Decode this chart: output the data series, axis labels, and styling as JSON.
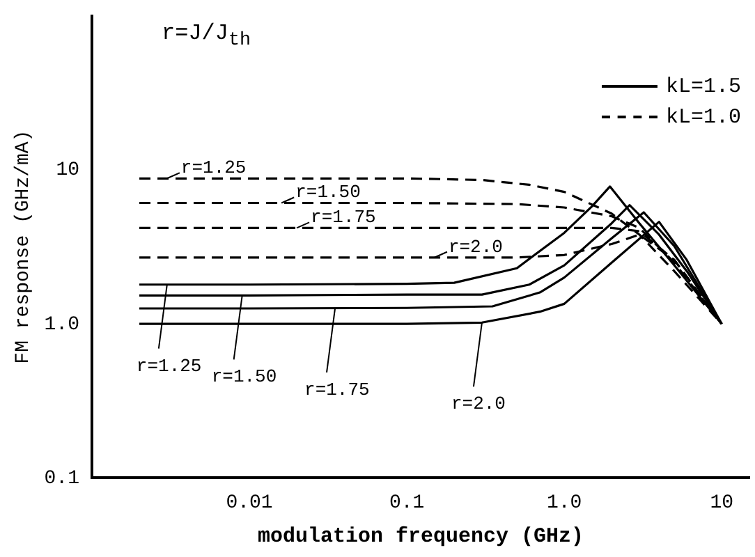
{
  "chart_data": {
    "type": "line",
    "xlabel": "modulation frequency (GHz)",
    "ylabel": "FM response (GHz/mA)",
    "log": "xy",
    "xlim": [
      0.001,
      15
    ],
    "xticks": [
      0.01,
      0.1,
      {
        "value": 1,
        "label": "1.0"
      },
      10
    ],
    "ylim": [
      0.1,
      100
    ],
    "yticks": [
      0.1,
      {
        "value": 1,
        "label": "1.0"
      },
      10
    ],
    "grid": false,
    "legend": "top right",
    "marker": "none",
    "annotations": [
      "r=J/J$_{th}$",
      {
        "text": "r=1.25",
        "x": 0.003,
        "y": 8.8
      },
      {
        "text": "r=1.50",
        "x": 0.016,
        "y": 6.1
      },
      {
        "text": "r=1.75",
        "x": 0.02,
        "y": 4.2
      },
      {
        "text": "r=2.0",
        "x": 0.15,
        "y": 2.7
      },
      {
        "text": "r=1.25",
        "x": 0.003,
        "y": 1.8
      },
      {
        "text": "r=1.50",
        "x": 0.009,
        "y": 1.53
      },
      {
        "text": "r=1.75",
        "x": 0.035,
        "y": 1.26
      },
      {
        "text": "r=2.0",
        "x": 0.3,
        "y": 1.02
      }
    ],
    "series": [
      {
        "name": "kL=1.5",
        "color": "#000000",
        "line_style": "solid",
        "x": [
          0.002,
          0.01,
          0.1,
          0.2,
          0.5,
          1,
          1.5,
          1.95,
          3,
          5,
          10
        ],
        "values": [
          1.8,
          1.8,
          1.82,
          1.85,
          2.3,
          3.9,
          5.8,
          7.8,
          4.5,
          2.4,
          1.0
        ]
      },
      {
        "color": "#000000",
        "line_style": "solid",
        "x": [
          0.002,
          0.01,
          0.1,
          0.3,
          0.6,
          1,
          2,
          2.6,
          4,
          6,
          10
        ],
        "values": [
          1.53,
          1.53,
          1.55,
          1.55,
          1.8,
          2.4,
          4.5,
          5.9,
          3.8,
          2.2,
          1.0
        ]
      },
      {
        "color": "#000000",
        "line_style": "solid",
        "x": [
          0.002,
          0.01,
          0.1,
          0.35,
          0.7,
          1,
          2,
          3.2,
          5,
          10
        ],
        "values": [
          1.26,
          1.26,
          1.27,
          1.3,
          1.6,
          2.0,
          3.6,
          5.3,
          3.2,
          1.0
        ]
      },
      {
        "color": "#000000",
        "line_style": "solid",
        "x": [
          0.002,
          0.01,
          0.1,
          0.3,
          0.7,
          1,
          2,
          4,
          6,
          10
        ],
        "values": [
          1.0,
          1.0,
          1.0,
          1.02,
          1.2,
          1.35,
          2.5,
          4.6,
          2.6,
          1.0
        ]
      },
      {
        "name": "kL=1.0",
        "color": "#000000",
        "line_style": "dashed",
        "x": [
          0.002,
          0.01,
          0.1,
          0.3,
          0.6,
          1,
          2,
          3,
          5,
          10
        ],
        "values": [
          8.8,
          8.8,
          8.8,
          8.6,
          8.0,
          7.2,
          5.2,
          3.8,
          2.2,
          1.0
        ]
      },
      {
        "color": "#000000",
        "line_style": "dashed",
        "x": [
          0.002,
          0.01,
          0.1,
          0.5,
          1,
          2,
          3,
          5,
          10
        ],
        "values": [
          6.1,
          6.1,
          6.1,
          6.0,
          5.7,
          5.0,
          4.2,
          2.5,
          1.0
        ]
      },
      {
        "color": "#000000",
        "line_style": "dashed",
        "x": [
          0.002,
          0.01,
          0.1,
          0.5,
          1,
          2,
          3,
          5,
          10
        ],
        "values": [
          4.2,
          4.2,
          4.2,
          4.2,
          4.2,
          4.2,
          4.0,
          2.6,
          1.0
        ]
      },
      {
        "color": "#000000",
        "line_style": "dashed",
        "x": [
          0.002,
          0.01,
          0.1,
          0.5,
          1,
          2,
          3,
          5,
          10
        ],
        "values": [
          2.7,
          2.7,
          2.7,
          2.7,
          2.8,
          3.3,
          3.8,
          2.6,
          1.0
        ]
      }
    ]
  }
}
